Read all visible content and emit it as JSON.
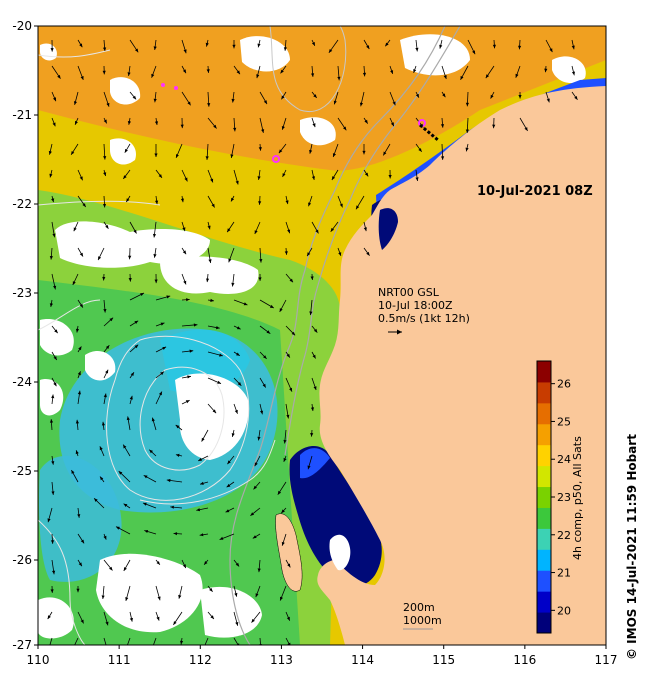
{
  "map": {
    "date_label": "10-Jul-2021 08Z",
    "current_info": [
      "NRT00 GSL",
      "10-Jul 18:00Z",
      "0.5m/s (1kt 12h)"
    ],
    "scale_labels": [
      "200m",
      "1000m"
    ],
    "credit": "© IMOS 14-Jul-2021 11:59 Hobart",
    "x_ticks": [
      "110",
      "111",
      "112",
      "113",
      "114",
      "115",
      "116",
      "117"
    ],
    "y_ticks": [
      "-20",
      "-21",
      "-22",
      "-23",
      "-24",
      "-25",
      "-26",
      "-27"
    ],
    "colorbar": {
      "title": "4h comp, p50, All Sats",
      "ticks": [
        "20",
        "21",
        "22",
        "23",
        "24",
        "25",
        "26"
      ],
      "range": [
        19.4,
        26.6
      ],
      "colors": [
        "#00007a",
        "#0000c8",
        "#1e50ff",
        "#00b4ff",
        "#3cd2b4",
        "#3cc83c",
        "#7ad200",
        "#d2e600",
        "#ffd200",
        "#f5a000",
        "#e66e00",
        "#c83c00",
        "#8c0000"
      ]
    },
    "colors": {
      "land": "#fac89a",
      "ocean_warm": "#f0a020",
      "ocean_mid": "#e6c800",
      "ocean_green": "#50c850",
      "ocean_cyan": "#3cbcdc",
      "coastal_blue": "#1e50ff",
      "coastal_navy": "#000a78",
      "cloud": "#ffffff",
      "marker": "#ff32ff"
    }
  }
}
